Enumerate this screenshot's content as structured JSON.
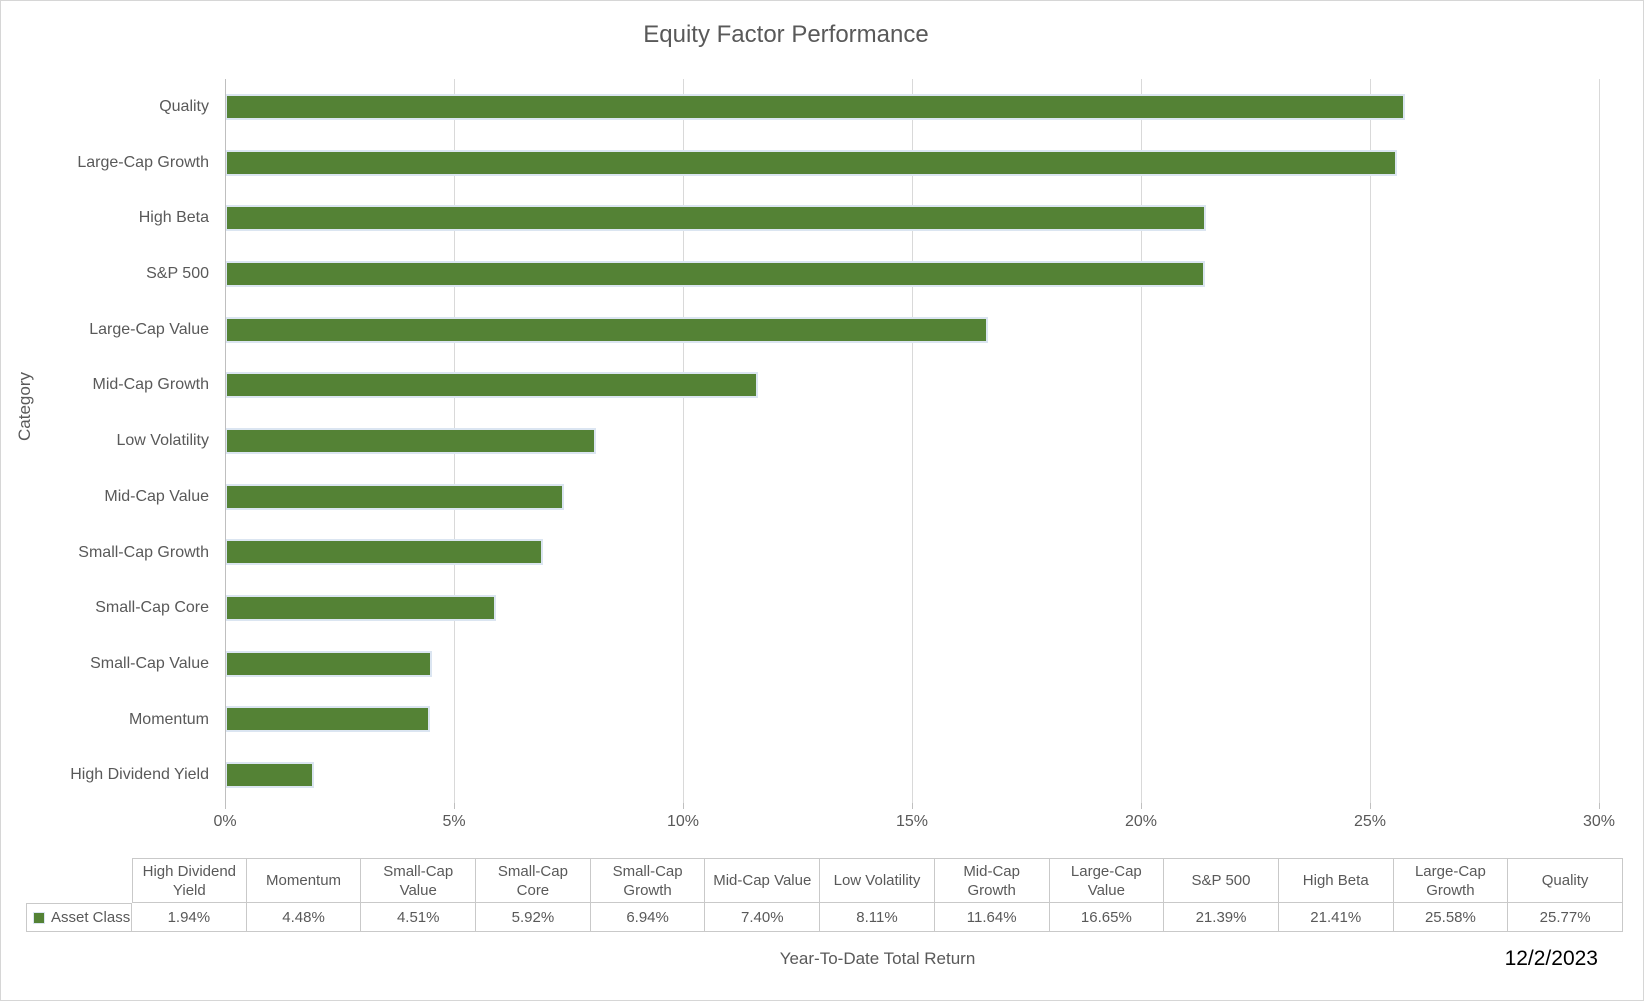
{
  "title": "Equity Factor Performance",
  "date_label": "12/2/2023",
  "chart_data": {
    "type": "bar",
    "orientation": "horizontal",
    "title": "Equity Factor Performance",
    "xlabel": "Year-To-Date Total Return",
    "ylabel": "Category",
    "xlim": [
      0,
      30
    ],
    "x_ticks": [
      "0%",
      "5%",
      "10%",
      "15%",
      "20%",
      "25%",
      "30%"
    ],
    "grid": true,
    "legend_position": "data-table-left",
    "bar_color": "#548235",
    "bar_border_color": "#dbe5f1",
    "series_name": "Asset Class",
    "categories": [
      "Quality",
      "Large-Cap Growth",
      "High Beta",
      "S&P 500",
      "Large-Cap Value",
      "Mid-Cap Growth",
      "Low Volatility",
      "Mid-Cap Value",
      "Small-Cap Growth",
      "Small-Cap Core",
      "Small-Cap Value",
      "Momentum",
      "High Dividend Yield"
    ],
    "values": [
      25.77,
      25.58,
      21.41,
      21.39,
      16.65,
      11.64,
      8.11,
      7.4,
      6.94,
      5.92,
      4.51,
      4.48,
      1.94
    ],
    "data_table": {
      "row_label": "Asset Class",
      "columns": [
        {
          "label": "High Dividend\nYield",
          "value": "1.94%"
        },
        {
          "label": "Momentum",
          "value": "4.48%"
        },
        {
          "label": "Small-Cap\nValue",
          "value": "4.51%"
        },
        {
          "label": "Small-Cap\nCore",
          "value": "5.92%"
        },
        {
          "label": "Small-Cap\nGrowth",
          "value": "6.94%"
        },
        {
          "label": "Mid-Cap Value",
          "value": "7.40%"
        },
        {
          "label": "Low Volatility",
          "value": "8.11%"
        },
        {
          "label": "Mid-Cap\nGrowth",
          "value": "11.64%"
        },
        {
          "label": "Large-Cap\nValue",
          "value": "16.65%"
        },
        {
          "label": "S&P 500",
          "value": "21.39%"
        },
        {
          "label": "High Beta",
          "value": "21.41%"
        },
        {
          "label": "Large-Cap\nGrowth",
          "value": "25.58%"
        },
        {
          "label": "Quality",
          "value": "25.77%"
        }
      ]
    }
  }
}
